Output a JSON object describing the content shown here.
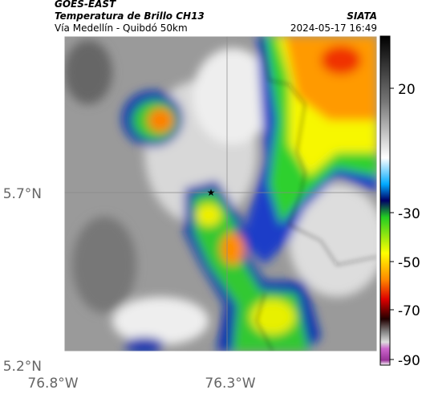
{
  "header": {
    "title": "GOES-EAST",
    "subtitle": "Temperatura de Brillo CH13",
    "region": "Vía Medellín - Quibdó 50km",
    "source": "SIATA",
    "timestamp": "2024-05-17 16:49"
  },
  "map": {
    "latitude_labels": [
      "5.7°N",
      "5.2°N"
    ],
    "longitude_labels": [
      "76.8°W",
      "76.3°W"
    ]
  },
  "colorbar": {
    "ticks": [
      20,
      -30,
      -50,
      -70,
      -90
    ]
  }
}
